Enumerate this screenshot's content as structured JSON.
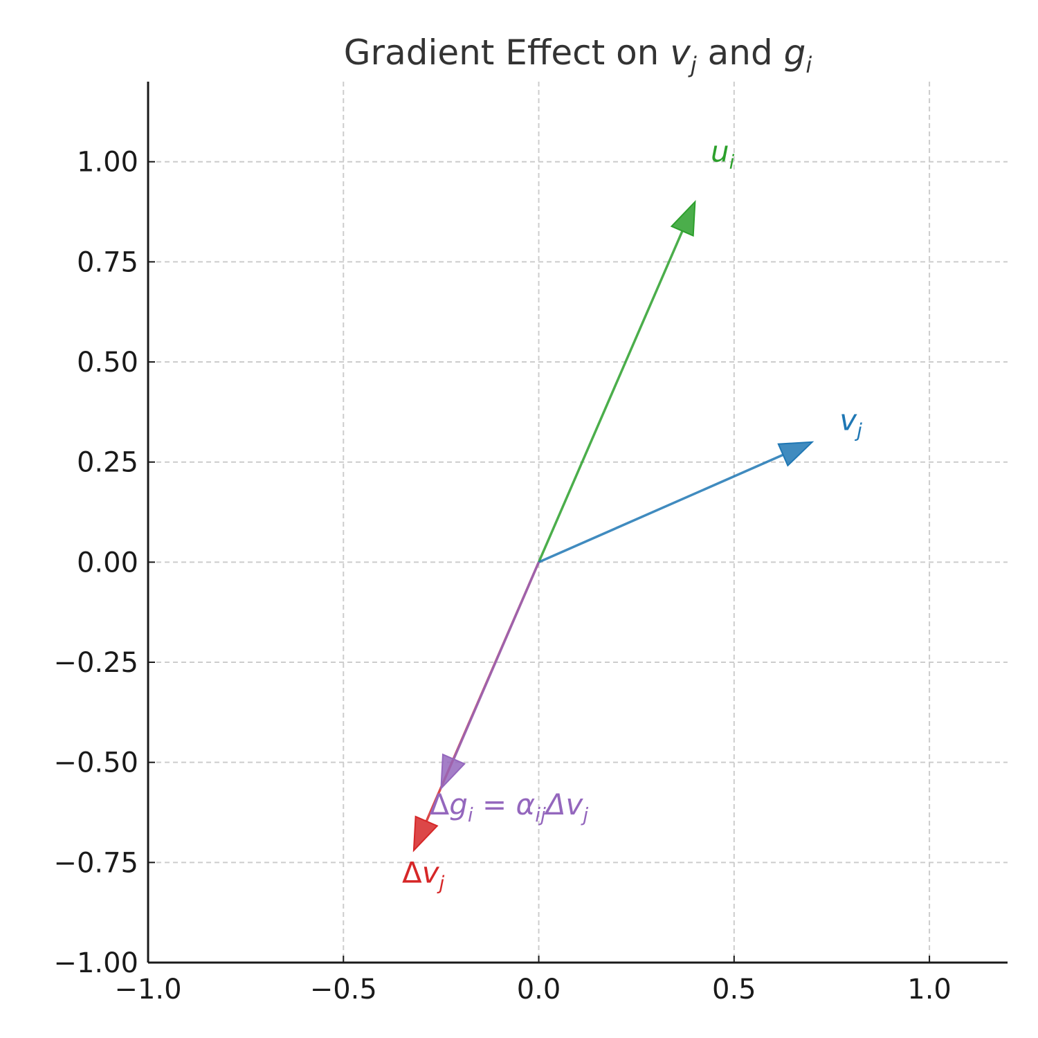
{
  "chart_data": {
    "type": "quiver",
    "title": "Gradient Effect on v_j and g_i",
    "title_parts": {
      "prefix": "Gradient Effect on ",
      "var1": "v",
      "var1_sub": "j",
      "middle": " and ",
      "var2": "g",
      "var2_sub": "i"
    },
    "xlabel": "",
    "ylabel": "",
    "xlim": [
      -1.0,
      1.2
    ],
    "ylim": [
      -1.0,
      1.2
    ],
    "x_ticks": [
      -1.0,
      -0.5,
      0.0,
      0.5,
      1.0
    ],
    "y_ticks": [
      -1.0,
      -0.75,
      -0.5,
      -0.25,
      0.0,
      0.25,
      0.5,
      0.75,
      1.0
    ],
    "x_tick_labels": [
      "−1.0",
      "−0.5",
      "0.0",
      "0.5",
      "1.0"
    ],
    "y_tick_labels": [
      "−1.00",
      "−0.75",
      "−0.50",
      "−0.25",
      "0.00",
      "0.25",
      "0.50",
      "0.75",
      "1.00"
    ],
    "grid": true,
    "vectors": [
      {
        "name": "u_i",
        "label_main": "u",
        "label_sub": "i",
        "label_prefix": "",
        "label_suffix": "",
        "origin": [
          0,
          0
        ],
        "end": [
          0.4,
          0.9
        ],
        "label_at": [
          0.44,
          1.0
        ],
        "color": "#2ca02c"
      },
      {
        "name": "v_j",
        "label_main": "v",
        "label_sub": "j",
        "label_prefix": "",
        "label_suffix": "",
        "origin": [
          0,
          0
        ],
        "end": [
          0.7,
          0.3
        ],
        "label_at": [
          0.77,
          0.33
        ],
        "color": "#1f77b4"
      },
      {
        "name": "Δv_j",
        "label_main": "v",
        "label_sub": "j",
        "label_prefix": "Δ",
        "label_suffix": "",
        "origin": [
          0,
          0
        ],
        "end": [
          -0.32,
          -0.72
        ],
        "label_at": [
          -0.35,
          -0.8
        ],
        "color": "#d62728"
      },
      {
        "name": "Δg_i = α_ijΔv_j",
        "label_main": "g",
        "label_sub": "i",
        "label_prefix": "Δ",
        "label_suffix": " = α",
        "label_suffix_sub": "ij",
        "label_tail": "Δv",
        "label_tail_sub": "j",
        "origin": [
          0,
          0
        ],
        "end": [
          -0.25,
          -0.565
        ],
        "label_at": [
          -0.28,
          -0.63
        ],
        "color": "#9467bd"
      }
    ]
  }
}
